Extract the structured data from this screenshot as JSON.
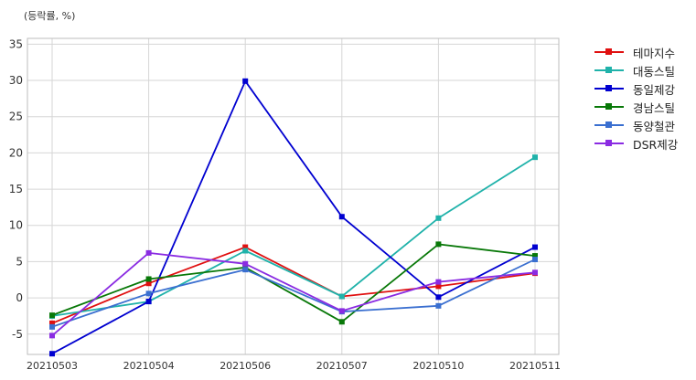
{
  "unit_label": "(등락률, %)",
  "chart_data": {
    "type": "line",
    "title": "",
    "xlabel": "",
    "ylabel": "",
    "categories": [
      "20210503",
      "20210504",
      "20210506",
      "20210507",
      "20210510",
      "20210511"
    ],
    "ylim": [
      -7.8,
      35.8
    ],
    "yticks": [
      -5,
      0,
      5,
      10,
      15,
      20,
      25,
      30,
      35
    ],
    "grid": true,
    "legend_position": "outside-right",
    "series": [
      {
        "name": "테마지수",
        "color": "#e01010",
        "values": [
          -3.5,
          2.0,
          7.0,
          0.2,
          1.6,
          3.4
        ]
      },
      {
        "name": "대동스틸",
        "color": "#20b2aa",
        "values": [
          -2.5,
          -0.5,
          6.5,
          0.2,
          11.0,
          19.4
        ]
      },
      {
        "name": "동일제강",
        "color": "#0000d0",
        "values": [
          -7.7,
          -0.5,
          29.9,
          11.2,
          0.1,
          7.0
        ]
      },
      {
        "name": "경남스틸",
        "color": "#087808",
        "values": [
          -2.4,
          2.6,
          4.2,
          -3.3,
          7.4,
          5.8
        ]
      },
      {
        "name": "동양철관",
        "color": "#3a6fd0",
        "values": [
          -4.0,
          0.6,
          3.9,
          -1.9,
          -1.1,
          5.3
        ]
      },
      {
        "name": "DSR제강",
        "color": "#8a2be2",
        "values": [
          -5.2,
          6.2,
          4.7,
          -1.8,
          2.2,
          3.5
        ]
      }
    ]
  }
}
